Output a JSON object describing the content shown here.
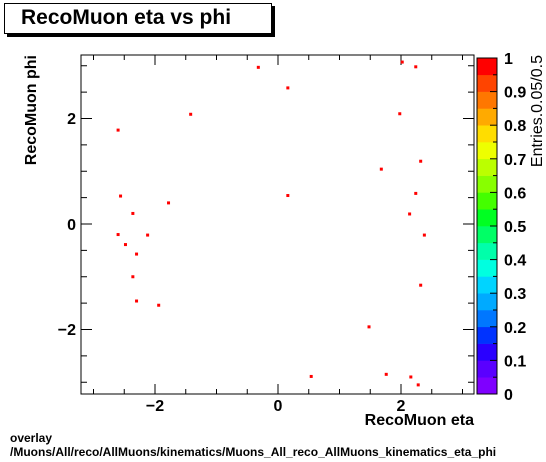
{
  "header": {
    "title": "RecoMuon eta vs phi"
  },
  "footer": {
    "line1": "overlay",
    "line2": "/Muons/All/reco/AllMuons/kinematics/Muons_All_reco_AllMuons_kinematics_eta_phi"
  },
  "chart_data": {
    "type": "scatter",
    "title": "RecoMuon eta vs phi",
    "xlabel": "RecoMuon eta",
    "ylabel": "RecoMuon phi",
    "xlim": [
      -3.2,
      3.2
    ],
    "ylim": [
      -3.14,
      3.14
    ],
    "x_tick_labels": [
      "−2",
      "0",
      "2"
    ],
    "y_tick_labels": [
      "−2",
      "0",
      "2"
    ],
    "marker_color": "#ff0000",
    "points": [
      {
        "x": -0.32,
        "y": 2.97
      },
      {
        "x": 0.16,
        "y": 2.58
      },
      {
        "x": 2.02,
        "y": 3.07
      },
      {
        "x": 2.24,
        "y": 2.98
      },
      {
        "x": -1.42,
        "y": 2.08
      },
      {
        "x": 1.98,
        "y": 2.09
      },
      {
        "x": -2.6,
        "y": 1.78
      },
      {
        "x": 2.32,
        "y": 1.19
      },
      {
        "x": 1.68,
        "y": 1.04
      },
      {
        "x": -2.56,
        "y": 0.53
      },
      {
        "x": 0.16,
        "y": 0.54
      },
      {
        "x": 2.24,
        "y": 0.58
      },
      {
        "x": -1.78,
        "y": 0.4
      },
      {
        "x": -2.36,
        "y": 0.2
      },
      {
        "x": 2.14,
        "y": 0.19
      },
      {
        "x": -2.6,
        "y": -0.2
      },
      {
        "x": -2.12,
        "y": -0.21
      },
      {
        "x": 2.38,
        "y": -0.21
      },
      {
        "x": -2.48,
        "y": -0.39
      },
      {
        "x": -2.3,
        "y": -0.57
      },
      {
        "x": -2.36,
        "y": -1.0
      },
      {
        "x": 2.32,
        "y": -1.16
      },
      {
        "x": -2.3,
        "y": -1.46
      },
      {
        "x": -1.94,
        "y": -1.54
      },
      {
        "x": 1.48,
        "y": -1.95
      },
      {
        "x": 0.54,
        "y": -2.89
      },
      {
        "x": 1.76,
        "y": -2.85
      },
      {
        "x": 2.16,
        "y": -2.9
      },
      {
        "x": 2.28,
        "y": -3.05
      }
    ],
    "colorbar": {
      "title": "Entries.0.05/0.5",
      "range": [
        0,
        1
      ],
      "tick_labels": [
        "0",
        "0.1",
        "0.2",
        "0.3",
        "0.4",
        "0.5",
        "0.6",
        "0.7",
        "0.8",
        "0.9",
        "1"
      ],
      "colors": [
        "#7f00ff",
        "#5a00ff",
        "#2a00ff",
        "#0033ff",
        "#0077ff",
        "#00aaff",
        "#00d4ff",
        "#00ffe0",
        "#00ffaa",
        "#00ff66",
        "#00ff22",
        "#44ff00",
        "#88ff00",
        "#bbff00",
        "#eeff00",
        "#ffdd00",
        "#ffaa00",
        "#ff7700",
        "#ff4400",
        "#ff0000"
      ]
    }
  }
}
